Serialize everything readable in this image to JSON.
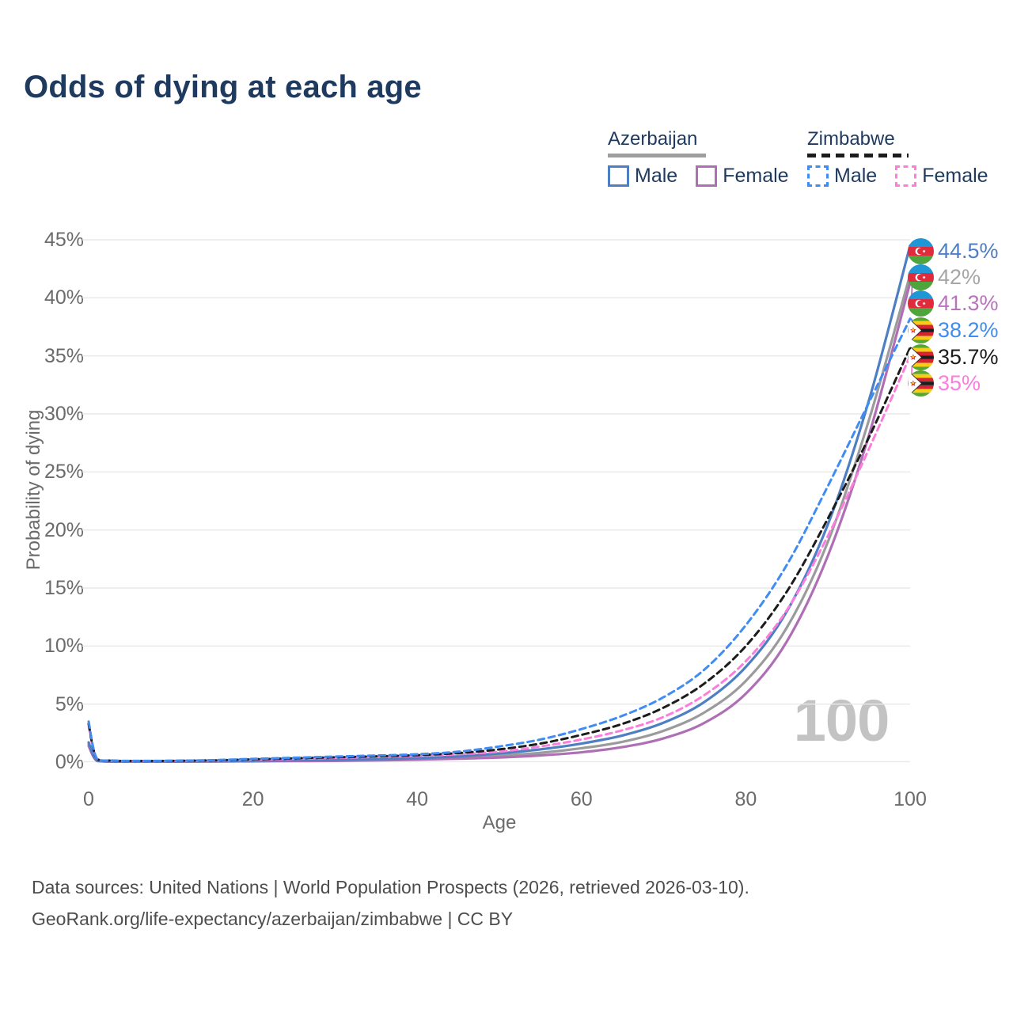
{
  "title": "Odds of dying at each age",
  "legend": {
    "groups": [
      {
        "key": "azerbaijan",
        "label": "Azerbaijan",
        "underline_style": "solid",
        "underline_color": "#9e9e9e",
        "items": [
          {
            "key": "male",
            "label": "Male",
            "color": "#4e7fc3",
            "dashed": false
          },
          {
            "key": "female",
            "label": "Female",
            "color": "#ae6fb5",
            "dashed": false
          }
        ]
      },
      {
        "key": "zimbabwe",
        "label": "Zimbabwe",
        "underline_style": "dashed",
        "underline_color": "#1c1c1c",
        "items": [
          {
            "key": "male",
            "label": "Male",
            "color": "#3f8cf3",
            "dashed": true
          },
          {
            "key": "female",
            "label": "Female",
            "color": "#fb7edd",
            "dashed": true
          }
        ]
      }
    ]
  },
  "chart_data": {
    "type": "line",
    "title": "Odds of dying at each age",
    "xlabel": "Age",
    "ylabel": "Probability of dying",
    "xlim": [
      0,
      100
    ],
    "ylim": [
      0,
      45
    ],
    "x_ticks": [
      0,
      20,
      40,
      60,
      80,
      100
    ],
    "y_tick_labels": [
      "0%",
      "5%",
      "10%",
      "15%",
      "20%",
      "25%",
      "30%",
      "35%",
      "40%",
      "45%"
    ],
    "grid": true,
    "legend_position": "top-right",
    "watermark": "100",
    "series": [
      {
        "key": "az_male",
        "name": "Azerbaijan Male",
        "color": "#4e7fc3",
        "dashed": false,
        "flag": "azerbaijan",
        "end_label": "44.5%",
        "end_label_color": "#4e7fc3",
        "points": [
          [
            0,
            1.7
          ],
          [
            1,
            0.14
          ],
          [
            3,
            0.06
          ],
          [
            5,
            0.05
          ],
          [
            10,
            0.06
          ],
          [
            15,
            0.09
          ],
          [
            20,
            0.13
          ],
          [
            25,
            0.17
          ],
          [
            30,
            0.21
          ],
          [
            35,
            0.27
          ],
          [
            40,
            0.35
          ],
          [
            45,
            0.5
          ],
          [
            50,
            0.75
          ],
          [
            55,
            1.1
          ],
          [
            60,
            1.6
          ],
          [
            65,
            2.3
          ],
          [
            70,
            3.4
          ],
          [
            75,
            5.2
          ],
          [
            80,
            8.2
          ],
          [
            85,
            13.0
          ],
          [
            90,
            20.5
          ],
          [
            95,
            31.2
          ],
          [
            100,
            44.5
          ]
        ]
      },
      {
        "key": "az_comb",
        "name": "Azerbaijan Combined",
        "color": "#9b9b9b",
        "dashed": false,
        "flag": "azerbaijan",
        "end_label": "42%",
        "end_label_color": "#a6a6a6",
        "points": [
          [
            0,
            1.55
          ],
          [
            1,
            0.13
          ],
          [
            3,
            0.055
          ],
          [
            5,
            0.045
          ],
          [
            10,
            0.05
          ],
          [
            15,
            0.07
          ],
          [
            20,
            0.1
          ],
          [
            25,
            0.13
          ],
          [
            30,
            0.16
          ],
          [
            35,
            0.21
          ],
          [
            40,
            0.28
          ],
          [
            45,
            0.4
          ],
          [
            50,
            0.55
          ],
          [
            55,
            0.8
          ],
          [
            60,
            1.2
          ],
          [
            65,
            1.75
          ],
          [
            70,
            2.7
          ],
          [
            75,
            4.3
          ],
          [
            80,
            7.0
          ],
          [
            85,
            11.6
          ],
          [
            90,
            19.0
          ],
          [
            95,
            29.5
          ],
          [
            100,
            42.0
          ]
        ]
      },
      {
        "key": "az_female",
        "name": "Azerbaijan Female",
        "color": "#ae6fb5",
        "dashed": false,
        "flag": "azerbaijan",
        "end_label": "41.3%",
        "end_label_color": "#b873bc",
        "points": [
          [
            0,
            1.4
          ],
          [
            1,
            0.11
          ],
          [
            3,
            0.05
          ],
          [
            5,
            0.04
          ],
          [
            10,
            0.04
          ],
          [
            15,
            0.05
          ],
          [
            20,
            0.07
          ],
          [
            25,
            0.09
          ],
          [
            30,
            0.11
          ],
          [
            35,
            0.15
          ],
          [
            40,
            0.21
          ],
          [
            45,
            0.3
          ],
          [
            50,
            0.4
          ],
          [
            55,
            0.58
          ],
          [
            60,
            0.85
          ],
          [
            65,
            1.3
          ],
          [
            70,
            2.05
          ],
          [
            75,
            3.4
          ],
          [
            80,
            5.9
          ],
          [
            85,
            10.4
          ],
          [
            90,
            17.8
          ],
          [
            95,
            28.2
          ],
          [
            100,
            41.3
          ]
        ]
      },
      {
        "key": "zw_male",
        "name": "Zimbabwe Male",
        "color": "#3f8cf3",
        "dashed": true,
        "flag": "zimbabwe",
        "end_label": "38.2%",
        "end_label_color": "#3f8cf3",
        "points": [
          [
            0,
            3.5
          ],
          [
            1,
            0.3
          ],
          [
            3,
            0.14
          ],
          [
            5,
            0.11
          ],
          [
            10,
            0.12
          ],
          [
            15,
            0.17
          ],
          [
            20,
            0.28
          ],
          [
            25,
            0.38
          ],
          [
            30,
            0.48
          ],
          [
            35,
            0.57
          ],
          [
            40,
            0.68
          ],
          [
            45,
            0.9
          ],
          [
            50,
            1.35
          ],
          [
            55,
            1.95
          ],
          [
            60,
            2.85
          ],
          [
            65,
            4.0
          ],
          [
            70,
            5.6
          ],
          [
            75,
            8.0
          ],
          [
            80,
            11.8
          ],
          [
            85,
            17.0
          ],
          [
            90,
            23.8
          ],
          [
            95,
            31.0
          ],
          [
            100,
            38.2
          ]
        ]
      },
      {
        "key": "zw_comb",
        "name": "Zimbabwe Combined",
        "color": "#1c1c1c",
        "dashed": true,
        "flag": "zimbabwe",
        "end_label": "35.7%",
        "end_label_color": "#1c1c1c",
        "points": [
          [
            0,
            3.3
          ],
          [
            1,
            0.28
          ],
          [
            3,
            0.13
          ],
          [
            5,
            0.1
          ],
          [
            10,
            0.11
          ],
          [
            15,
            0.15
          ],
          [
            20,
            0.24
          ],
          [
            25,
            0.33
          ],
          [
            30,
            0.42
          ],
          [
            35,
            0.5
          ],
          [
            40,
            0.6
          ],
          [
            45,
            0.78
          ],
          [
            50,
            1.1
          ],
          [
            55,
            1.6
          ],
          [
            60,
            2.35
          ],
          [
            65,
            3.3
          ],
          [
            70,
            4.7
          ],
          [
            75,
            6.8
          ],
          [
            80,
            10.0
          ],
          [
            85,
            14.7
          ],
          [
            90,
            21.0
          ],
          [
            95,
            28.0
          ],
          [
            100,
            35.7
          ]
        ]
      },
      {
        "key": "zw_female",
        "name": "Zimbabwe Female",
        "color": "#fb7edd",
        "dashed": true,
        "flag": "zimbabwe",
        "end_label": "35%",
        "end_label_color": "#fb7edd",
        "points": [
          [
            0,
            3.1
          ],
          [
            1,
            0.26
          ],
          [
            3,
            0.12
          ],
          [
            5,
            0.09
          ],
          [
            10,
            0.1
          ],
          [
            15,
            0.13
          ],
          [
            20,
            0.2
          ],
          [
            25,
            0.28
          ],
          [
            30,
            0.36
          ],
          [
            35,
            0.44
          ],
          [
            40,
            0.53
          ],
          [
            45,
            0.68
          ],
          [
            50,
            0.9
          ],
          [
            55,
            1.35
          ],
          [
            60,
            1.95
          ],
          [
            65,
            2.75
          ],
          [
            70,
            3.9
          ],
          [
            75,
            5.8
          ],
          [
            80,
            8.7
          ],
          [
            85,
            13.1
          ],
          [
            90,
            19.5
          ],
          [
            95,
            27.0
          ],
          [
            100,
            35.0
          ]
        ]
      }
    ]
  },
  "footer": {
    "line1": "Data sources: United Nations | World Population Prospects (2026, retrieved 2026-03-10).",
    "line2": "GeoRank.org/life-expectancy/azerbaijan/zimbabwe | CC BY"
  }
}
